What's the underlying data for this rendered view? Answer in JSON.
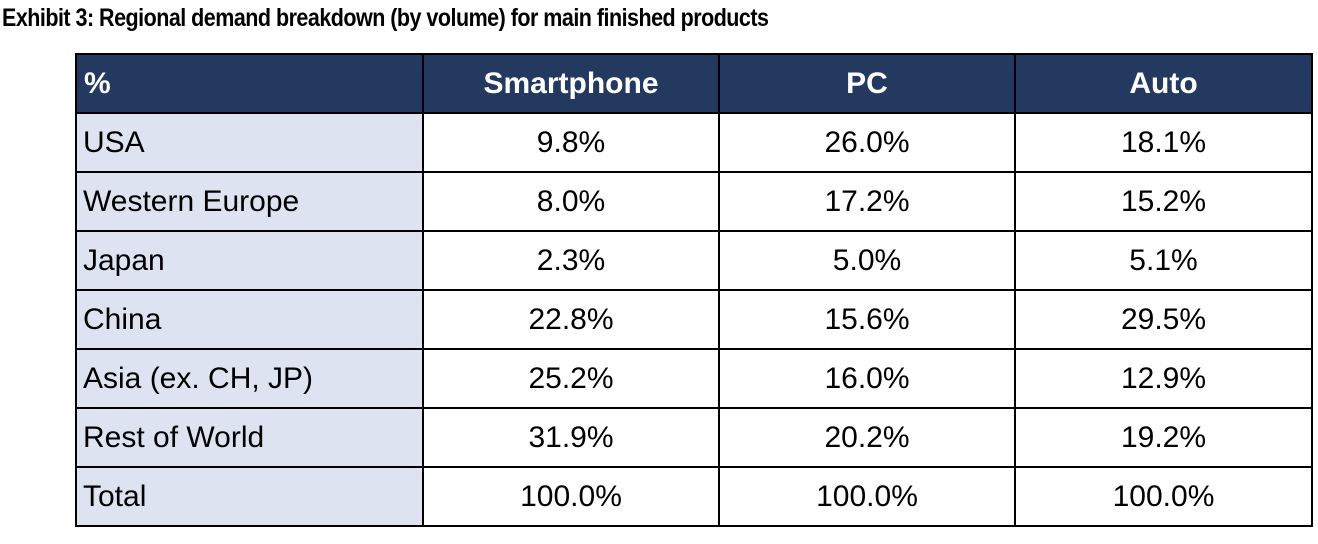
{
  "title": "Exhibit 3: Regional demand breakdown (by volume) for main finished products",
  "table": {
    "corner_label": "%",
    "columns": [
      "Smartphone",
      "PC",
      "Auto"
    ],
    "rows": [
      {
        "region": "USA",
        "values": [
          "9.8%",
          "26.0%",
          "18.1%"
        ]
      },
      {
        "region": "Western Europe",
        "values": [
          "8.0%",
          "17.2%",
          "15.2%"
        ]
      },
      {
        "region": "Japan",
        "values": [
          "2.3%",
          "5.0%",
          "5.1%"
        ]
      },
      {
        "region": "China",
        "values": [
          "22.8%",
          "15.6%",
          "29.5%"
        ]
      },
      {
        "region": "Asia (ex. CH, JP)",
        "values": [
          "25.2%",
          "16.0%",
          "12.9%"
        ]
      },
      {
        "region": "Rest of World",
        "values": [
          "31.9%",
          "20.2%",
          "19.2%"
        ]
      },
      {
        "region": "Total",
        "values": [
          "100.0%",
          "100.0%",
          "100.0%"
        ]
      }
    ],
    "colors": {
      "header_bg": "#24395f",
      "header_text": "#ffffff",
      "region_bg": "#dde3f0",
      "grid": "#000000"
    }
  }
}
